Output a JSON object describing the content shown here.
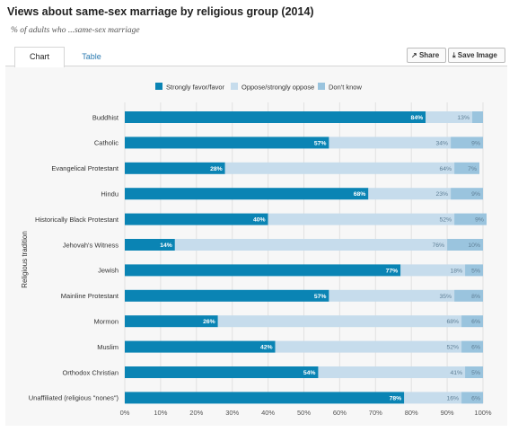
{
  "header": {
    "title": "Views about same-sex marriage by religious group (2014)",
    "subtitle": "% of adults who ...same-sex marriage"
  },
  "tabs": [
    {
      "label": "Chart",
      "active": true
    },
    {
      "label": "Table",
      "active": false
    }
  ],
  "toolbar": {
    "share_label": "Share",
    "save_label": "Save Image"
  },
  "colors": {
    "favor": "#0a84b4",
    "oppose": "#c6dcec",
    "dont_know": "#9ac4de"
  },
  "chart_data": {
    "type": "bar",
    "orientation": "horizontal",
    "stacked": true,
    "ylabel": "Religious tradition",
    "xlim": [
      0,
      100
    ],
    "x_ticks": [
      "0%",
      "10%",
      "20%",
      "30%",
      "40%",
      "50%",
      "60%",
      "70%",
      "80%",
      "90%",
      "100%"
    ],
    "legend_position": "top",
    "categories": [
      "Buddhist",
      "Catholic",
      "Evangelical Protestant",
      "Hindu",
      "Historically Black Protestant",
      "Jehovah's Witness",
      "Jewish",
      "Mainline Protestant",
      "Mormon",
      "Muslim",
      "Orthodox Christian",
      "Unaffiliated (religious \"nones\")"
    ],
    "series": [
      {
        "name": "Strongly favor/favor",
        "values": [
          84,
          57,
          28,
          68,
          40,
          14,
          77,
          57,
          26,
          42,
          54,
          78
        ]
      },
      {
        "name": "Oppose/strongly oppose",
        "values": [
          13,
          34,
          64,
          23,
          52,
          76,
          18,
          35,
          68,
          52,
          41,
          16
        ]
      },
      {
        "name": "Don't know",
        "values": [
          3,
          9,
          7,
          9,
          9,
          10,
          5,
          8,
          6,
          6,
          5,
          6
        ]
      }
    ],
    "data_labels": [
      [
        "84%",
        "13%",
        ""
      ],
      [
        "57%",
        "34%",
        "9%"
      ],
      [
        "28%",
        "64%",
        "7%"
      ],
      [
        "68%",
        "23%",
        "9%"
      ],
      [
        "40%",
        "52%",
        "9%"
      ],
      [
        "14%",
        "76%",
        "10%"
      ],
      [
        "77%",
        "18%",
        "5%"
      ],
      [
        "57%",
        "35%",
        "8%"
      ],
      [
        "26%",
        "68%",
        "6%"
      ],
      [
        "42%",
        "52%",
        "6%"
      ],
      [
        "54%",
        "41%",
        "5%"
      ],
      [
        "78%",
        "16%",
        "6%"
      ]
    ]
  }
}
